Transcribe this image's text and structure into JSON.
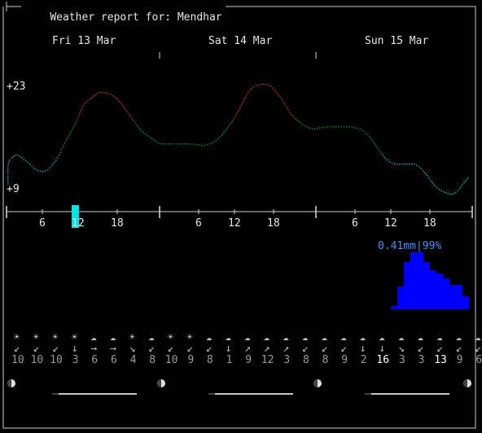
{
  "header": {
    "title": "Weather report for: Mendhar"
  },
  "days": [
    "Fri 13 Mar",
    "Sat 14 Mar",
    "Sun 15 Mar"
  ],
  "temperature": {
    "max_label": "+23",
    "min_label": "+9",
    "max": 23,
    "min": 9
  },
  "hour_ticks": [
    "6",
    "12",
    "18",
    "6",
    "12",
    "18",
    "6",
    "12",
    "18"
  ],
  "current_hour": 12,
  "precipitation": {
    "label": "0.41mm|99%",
    "amount_mm": 0.41,
    "probability_pct": 99
  },
  "wind_speeds": [
    "10",
    "10",
    "10",
    "3",
    "6",
    "6",
    "4",
    "8",
    "10",
    "9",
    "8",
    "1",
    "9",
    "12",
    "3",
    "8",
    "8",
    "9",
    "2",
    "16",
    "3",
    "3",
    "13",
    "9",
    "6"
  ],
  "wind_arrows": [
    "↙",
    "↙",
    "↙",
    "↓",
    "→",
    "→",
    "↘",
    "↙",
    "↙",
    "↙",
    "↙",
    "↓",
    "↗",
    "↗",
    "↗",
    "↙",
    "↙",
    "↙",
    "↓",
    "↓",
    "↘",
    "↙",
    "↙",
    "↙",
    "↙"
  ],
  "weather_icons": [
    "☀",
    "☀",
    "☀",
    "☀",
    "☁",
    "☁",
    "☀",
    "☁",
    "☀",
    "☀",
    "☁",
    "☁",
    "☁",
    "☁",
    "☁",
    "☁",
    "☁",
    "☁",
    "☁",
    "☁",
    "☁",
    "☁",
    "☁",
    "☁",
    "☁"
  ],
  "moon_icon": "moon-phase-icon",
  "colors": {
    "cold": "#00bcbc",
    "mild": "#00a000",
    "warm": "#d23030",
    "rain": "#0000ff",
    "rain_label": "#3f8fff",
    "cursor": "#00e6e6"
  }
}
